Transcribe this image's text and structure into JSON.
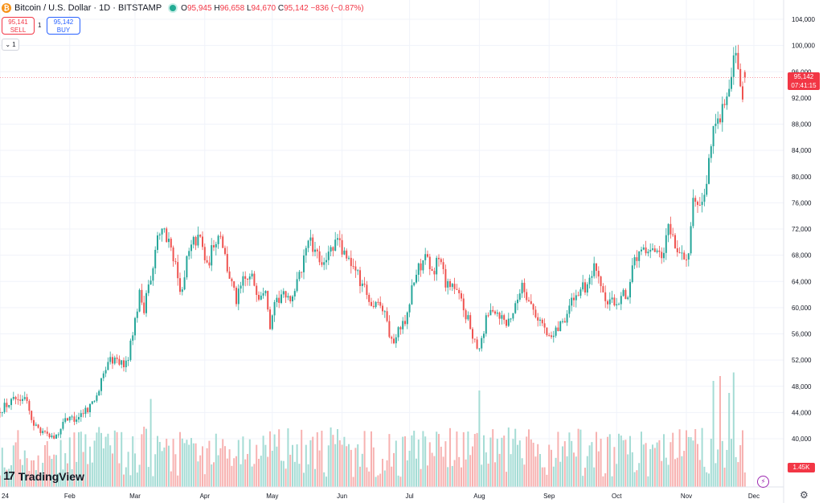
{
  "header": {
    "symbol": "Bitcoin / U.S. Dollar · 1D · BITSTAMP",
    "coin_glyph": "₿",
    "ohlc": {
      "o_label": "O",
      "o": "95,945",
      "h_label": "H",
      "h": "96,658",
      "l_label": "L",
      "l": "94,670",
      "c_label": "C",
      "c": "95,142",
      "change": "−836 (−0.87%)"
    }
  },
  "trade": {
    "sell_price": "95,141",
    "sell_label": "SELL",
    "spread": "1",
    "buy_price": "95,142",
    "buy_label": "BUY"
  },
  "interval": {
    "chevron": "⌄",
    "value": "1"
  },
  "branding": {
    "logo_mark": "17",
    "logo_text": "TradingView"
  },
  "price_tag": {
    "price": "95,142",
    "countdown": "07:41:15"
  },
  "volume_tag": "1.45K",
  "icons": {
    "bolt": "⚡",
    "gear": "⚙"
  },
  "colors": {
    "up": "#26a69a",
    "down": "#ef5350",
    "vol_up": "#a5dcd5",
    "vol_down": "#f7b2b1",
    "grid": "#f0f3fa"
  },
  "chart_data": {
    "type": "candlestick",
    "y_axis": {
      "ticks": [
        40000,
        44000,
        48000,
        52000,
        56000,
        60000,
        64000,
        68000,
        72000,
        76000,
        80000,
        84000,
        88000,
        92000,
        96000,
        100000,
        104000
      ]
    },
    "y_tick_labels": [
      "40,000",
      "44,000",
      "48,000",
      "52,000",
      "56,000",
      "60,000",
      "64,000",
      "68,000",
      "72,000",
      "76,000",
      "80,000",
      "84,000",
      "88,000",
      "92,000",
      "96,000",
      "100,000",
      "104,000"
    ],
    "x_tick_labels": [
      "24",
      "Feb",
      "Mar",
      "Apr",
      "May",
      "Jun",
      "Jul",
      "Aug",
      "Sep",
      "Oct",
      "Nov",
      "Dec"
    ],
    "x_tick_days": [
      0,
      31,
      60,
      91,
      121,
      152,
      182,
      213,
      244,
      274,
      305,
      335
    ],
    "last_day": 331,
    "current_price": 95142,
    "close_path": [
      [
        0,
        44500
      ],
      [
        7,
        46000
      ],
      [
        11,
        46800
      ],
      [
        14,
        42800
      ],
      [
        18,
        41200
      ],
      [
        22,
        40000
      ],
      [
        26,
        40500
      ],
      [
        29,
        42800
      ],
      [
        34,
        43300
      ],
      [
        40,
        45000
      ],
      [
        44,
        47500
      ],
      [
        48,
        52000
      ],
      [
        52,
        52000
      ],
      [
        56,
        51200
      ],
      [
        59,
        56000
      ],
      [
        62,
        62000
      ],
      [
        64,
        60000
      ],
      [
        67,
        65000
      ],
      [
        69,
        69000
      ],
      [
        72,
        73000
      ],
      [
        74,
        71000
      ],
      [
        77,
        68000
      ],
      [
        80,
        62000
      ],
      [
        83,
        67000
      ],
      [
        86,
        70000
      ],
      [
        89,
        70500
      ],
      [
        92,
        66000
      ],
      [
        95,
        70000
      ],
      [
        98,
        71500
      ],
      [
        101,
        66000
      ],
      [
        105,
        61000
      ],
      [
        108,
        64000
      ],
      [
        112,
        64500
      ],
      [
        115,
        62000
      ],
      [
        118,
        63500
      ],
      [
        120,
        57500
      ],
      [
        122,
        60000
      ],
      [
        125,
        62000
      ],
      [
        128,
        61000
      ],
      [
        131,
        62500
      ],
      [
        134,
        66000
      ],
      [
        137,
        70800
      ],
      [
        140,
        68000
      ],
      [
        143,
        67200
      ],
      [
        146,
        68000
      ],
      [
        150,
        70000
      ],
      [
        154,
        67800
      ],
      [
        158,
        65500
      ],
      [
        162,
        63000
      ],
      [
        165,
        60500
      ],
      [
        168,
        61000
      ],
      [
        171,
        59500
      ],
      [
        174,
        54500
      ],
      [
        177,
        56500
      ],
      [
        180,
        58000
      ],
      [
        183,
        63000
      ],
      [
        186,
        66000
      ],
      [
        189,
        67800
      ],
      [
        192,
        65000
      ],
      [
        195,
        68000
      ],
      [
        198,
        64000
      ],
      [
        201,
        63500
      ],
      [
        205,
        61000
      ],
      [
        208,
        58000
      ],
      [
        211,
        55000
      ],
      [
        213,
        54000
      ],
      [
        216,
        58000
      ],
      [
        219,
        60000
      ],
      [
        222,
        59000
      ],
      [
        225,
        57500
      ],
      [
        229,
        60000
      ],
      [
        232,
        64000
      ],
      [
        235,
        61000
      ],
      [
        238,
        59000
      ],
      [
        241,
        57500
      ],
      [
        244,
        55000
      ],
      [
        248,
        57000
      ],
      [
        251,
        58500
      ],
      [
        254,
        60800
      ],
      [
        258,
        63000
      ],
      [
        261,
        62800
      ],
      [
        264,
        65800
      ],
      [
        267,
        63000
      ],
      [
        270,
        60300
      ],
      [
        273,
        61000
      ],
      [
        276,
        61500
      ],
      [
        279,
        62500
      ],
      [
        282,
        67000
      ],
      [
        285,
        68500
      ],
      [
        288,
        67800
      ],
      [
        291,
        68500
      ],
      [
        294,
        67000
      ],
      [
        297,
        72000
      ],
      [
        300,
        69500
      ],
      [
        303,
        67500
      ],
      [
        306,
        68000
      ],
      [
        308,
        76500
      ],
      [
        311,
        76000
      ],
      [
        314,
        79500
      ],
      [
        317,
        88000
      ],
      [
        320,
        89500
      ],
      [
        323,
        91000
      ],
      [
        326,
        98500
      ],
      [
        328,
        97500
      ],
      [
        330,
        92000
      ],
      [
        331,
        95142
      ]
    ],
    "volume_peaks": [
      [
        7,
        37
      ],
      [
        14,
        22
      ],
      [
        29,
        28
      ],
      [
        59,
        42
      ],
      [
        64,
        50
      ],
      [
        67,
        73
      ],
      [
        74,
        40
      ],
      [
        84,
        35
      ],
      [
        121,
        30
      ],
      [
        152,
        35
      ],
      [
        182,
        30
      ],
      [
        213,
        80
      ],
      [
        244,
        35
      ],
      [
        305,
        47
      ],
      [
        317,
        88
      ],
      [
        320,
        92
      ],
      [
        324,
        78
      ],
      [
        326,
        95
      ],
      [
        330,
        47
      ],
      [
        331,
        12
      ]
    ]
  }
}
